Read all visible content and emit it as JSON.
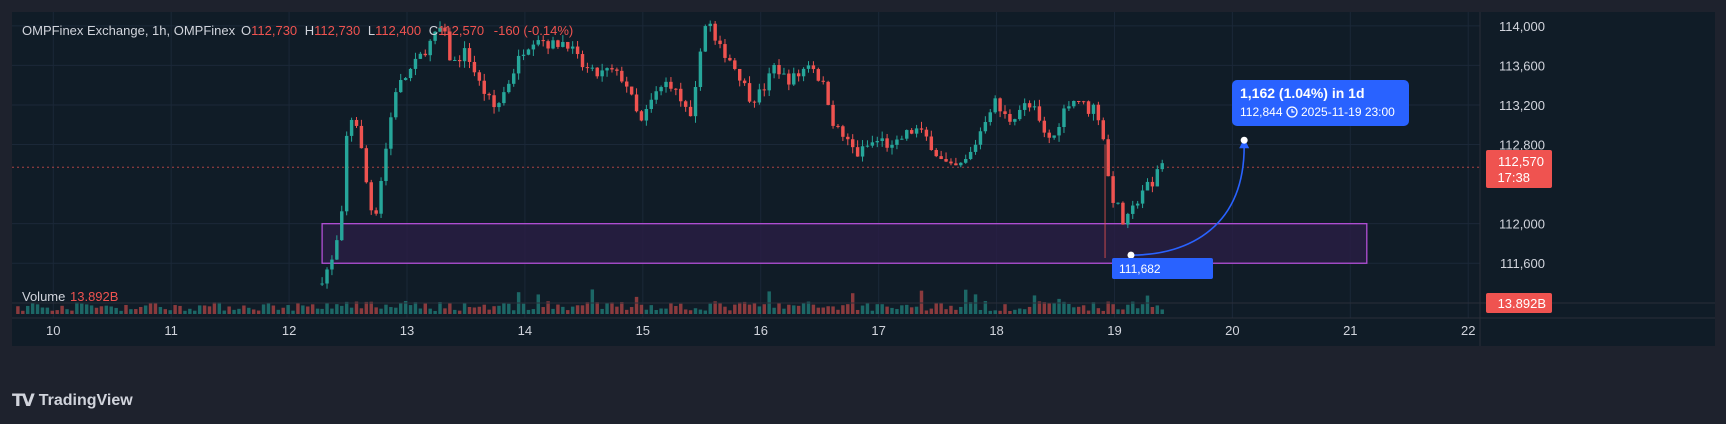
{
  "header": {
    "symbol": "OMPFinex Exchange, 1h, OMPFinex",
    "o_label": "O",
    "o_value": "112,730",
    "h_label": "H",
    "h_value": "112,730",
    "l_label": "L",
    "l_value": "112,400",
    "c_label": "C",
    "c_value": "112,570",
    "change": "-160 (-0.14%)"
  },
  "volume": {
    "label": "Volume",
    "value": "13.892B",
    "badge": "13.892B"
  },
  "price_badge": {
    "price": "112,570",
    "countdown": "17:38"
  },
  "measure": {
    "line1": "1,162 (1.04%) in 1d",
    "price": "112,844",
    "time_icon": "clock-icon",
    "datetime": "2025-11-19  23:00",
    "start_label": "111,682",
    "start_price": 111682,
    "end_price": 112844
  },
  "zone": {
    "top": 112000,
    "bottom": 111600,
    "x_start": 12.28,
    "x_end": 21.14
  },
  "branding": {
    "logo": "TV",
    "name": "TradingView"
  },
  "colors": {
    "up": "#26a69a",
    "down": "#ef5350",
    "background": "#101c27",
    "grid": "#1b2838",
    "zone_fill": "#2a1d45",
    "zone_border": "#b24fd6",
    "measure": "#2962ff",
    "text": "#d1d4dc"
  },
  "chart_data": {
    "type": "candlestick",
    "x_axis": {
      "ticks": [
        {
          "x": 10,
          "label": "10"
        },
        {
          "x": 11,
          "label": "11"
        },
        {
          "x": 12,
          "label": "12"
        },
        {
          "x": 13,
          "label": "13"
        },
        {
          "x": 14,
          "label": "14"
        },
        {
          "x": 15,
          "label": "15"
        },
        {
          "x": 16,
          "label": "16"
        },
        {
          "x": 17,
          "label": "17"
        },
        {
          "x": 18,
          "label": "18"
        },
        {
          "x": 19,
          "label": "19"
        },
        {
          "x": 20,
          "label": "20"
        },
        {
          "x": 21,
          "label": "21"
        },
        {
          "x": 22,
          "label": "22"
        }
      ],
      "range": [
        9.65,
        22.1
      ]
    },
    "y_axis": {
      "ticks": [
        {
          "v": 114000,
          "label": "114,000"
        },
        {
          "v": 113600,
          "label": "113,600"
        },
        {
          "v": 113200,
          "label": "113,200"
        },
        {
          "v": 112800,
          "label": "112,800"
        },
        {
          "v": 112000,
          "label": "112,000"
        },
        {
          "v": 111600,
          "label": "111,600"
        }
      ],
      "range": [
        111380,
        114140
      ]
    },
    "price_series": [
      [
        12.28,
        111450
      ],
      [
        12.38,
        111650
      ],
      [
        12.45,
        112100
      ],
      [
        12.5,
        113100
      ],
      [
        12.58,
        113000
      ],
      [
        12.65,
        112450
      ],
      [
        12.72,
        112000
      ],
      [
        12.8,
        112600
      ],
      [
        12.9,
        113350
      ],
      [
        13.0,
        113500
      ],
      [
        13.15,
        113750
      ],
      [
        13.3,
        114000
      ],
      [
        13.38,
        113600
      ],
      [
        13.5,
        113750
      ],
      [
        13.62,
        113400
      ],
      [
        13.75,
        113150
      ],
      [
        13.85,
        113400
      ],
      [
        13.98,
        113750
      ],
      [
        14.1,
        113900
      ],
      [
        14.22,
        113800
      ],
      [
        14.35,
        113850
      ],
      [
        14.48,
        113600
      ],
      [
        14.6,
        113500
      ],
      [
        14.72,
        113550
      ],
      [
        14.85,
        113450
      ],
      [
        14.98,
        113000
      ],
      [
        15.1,
        113300
      ],
      [
        15.22,
        113450
      ],
      [
        15.32,
        113250
      ],
      [
        15.42,
        113000
      ],
      [
        15.48,
        113750
      ],
      [
        15.55,
        114100
      ],
      [
        15.62,
        113800
      ],
      [
        15.72,
        113700
      ],
      [
        15.82,
        113500
      ],
      [
        15.92,
        113250
      ],
      [
        16.02,
        113350
      ],
      [
        16.12,
        113600
      ],
      [
        16.22,
        113450
      ],
      [
        16.32,
        113500
      ],
      [
        16.42,
        113650
      ],
      [
        16.48,
        113500
      ],
      [
        16.55,
        113350
      ],
      [
        16.62,
        113000
      ],
      [
        16.72,
        112850
      ],
      [
        16.82,
        112700
      ],
      [
        16.92,
        112800
      ],
      [
        17.02,
        112850
      ],
      [
        17.12,
        112750
      ],
      [
        17.22,
        112900
      ],
      [
        17.32,
        112950
      ],
      [
        17.42,
        112850
      ],
      [
        17.52,
        112650
      ],
      [
        17.62,
        112550
      ],
      [
        17.72,
        112600
      ],
      [
        17.8,
        112750
      ],
      [
        17.9,
        113050
      ],
      [
        17.98,
        113250
      ],
      [
        18.05,
        113100
      ],
      [
        18.12,
        113050
      ],
      [
        18.22,
        113200
      ],
      [
        18.32,
        113150
      ],
      [
        18.4,
        112900
      ],
      [
        18.48,
        112850
      ],
      [
        18.55,
        113100
      ],
      [
        18.62,
        113250
      ],
      [
        18.7,
        113250
      ],
      [
        18.78,
        113150
      ],
      [
        18.84,
        113200
      ],
      [
        18.92,
        112800
      ],
      [
        18.96,
        112300
      ],
      [
        19.02,
        112200
      ],
      [
        19.08,
        111980
      ],
      [
        19.14,
        112100
      ],
      [
        19.2,
        112250
      ],
      [
        19.26,
        112400
      ],
      [
        19.32,
        112350
      ],
      [
        19.38,
        112650
      ],
      [
        19.43,
        112570
      ]
    ],
    "volume_bars": 260
  }
}
